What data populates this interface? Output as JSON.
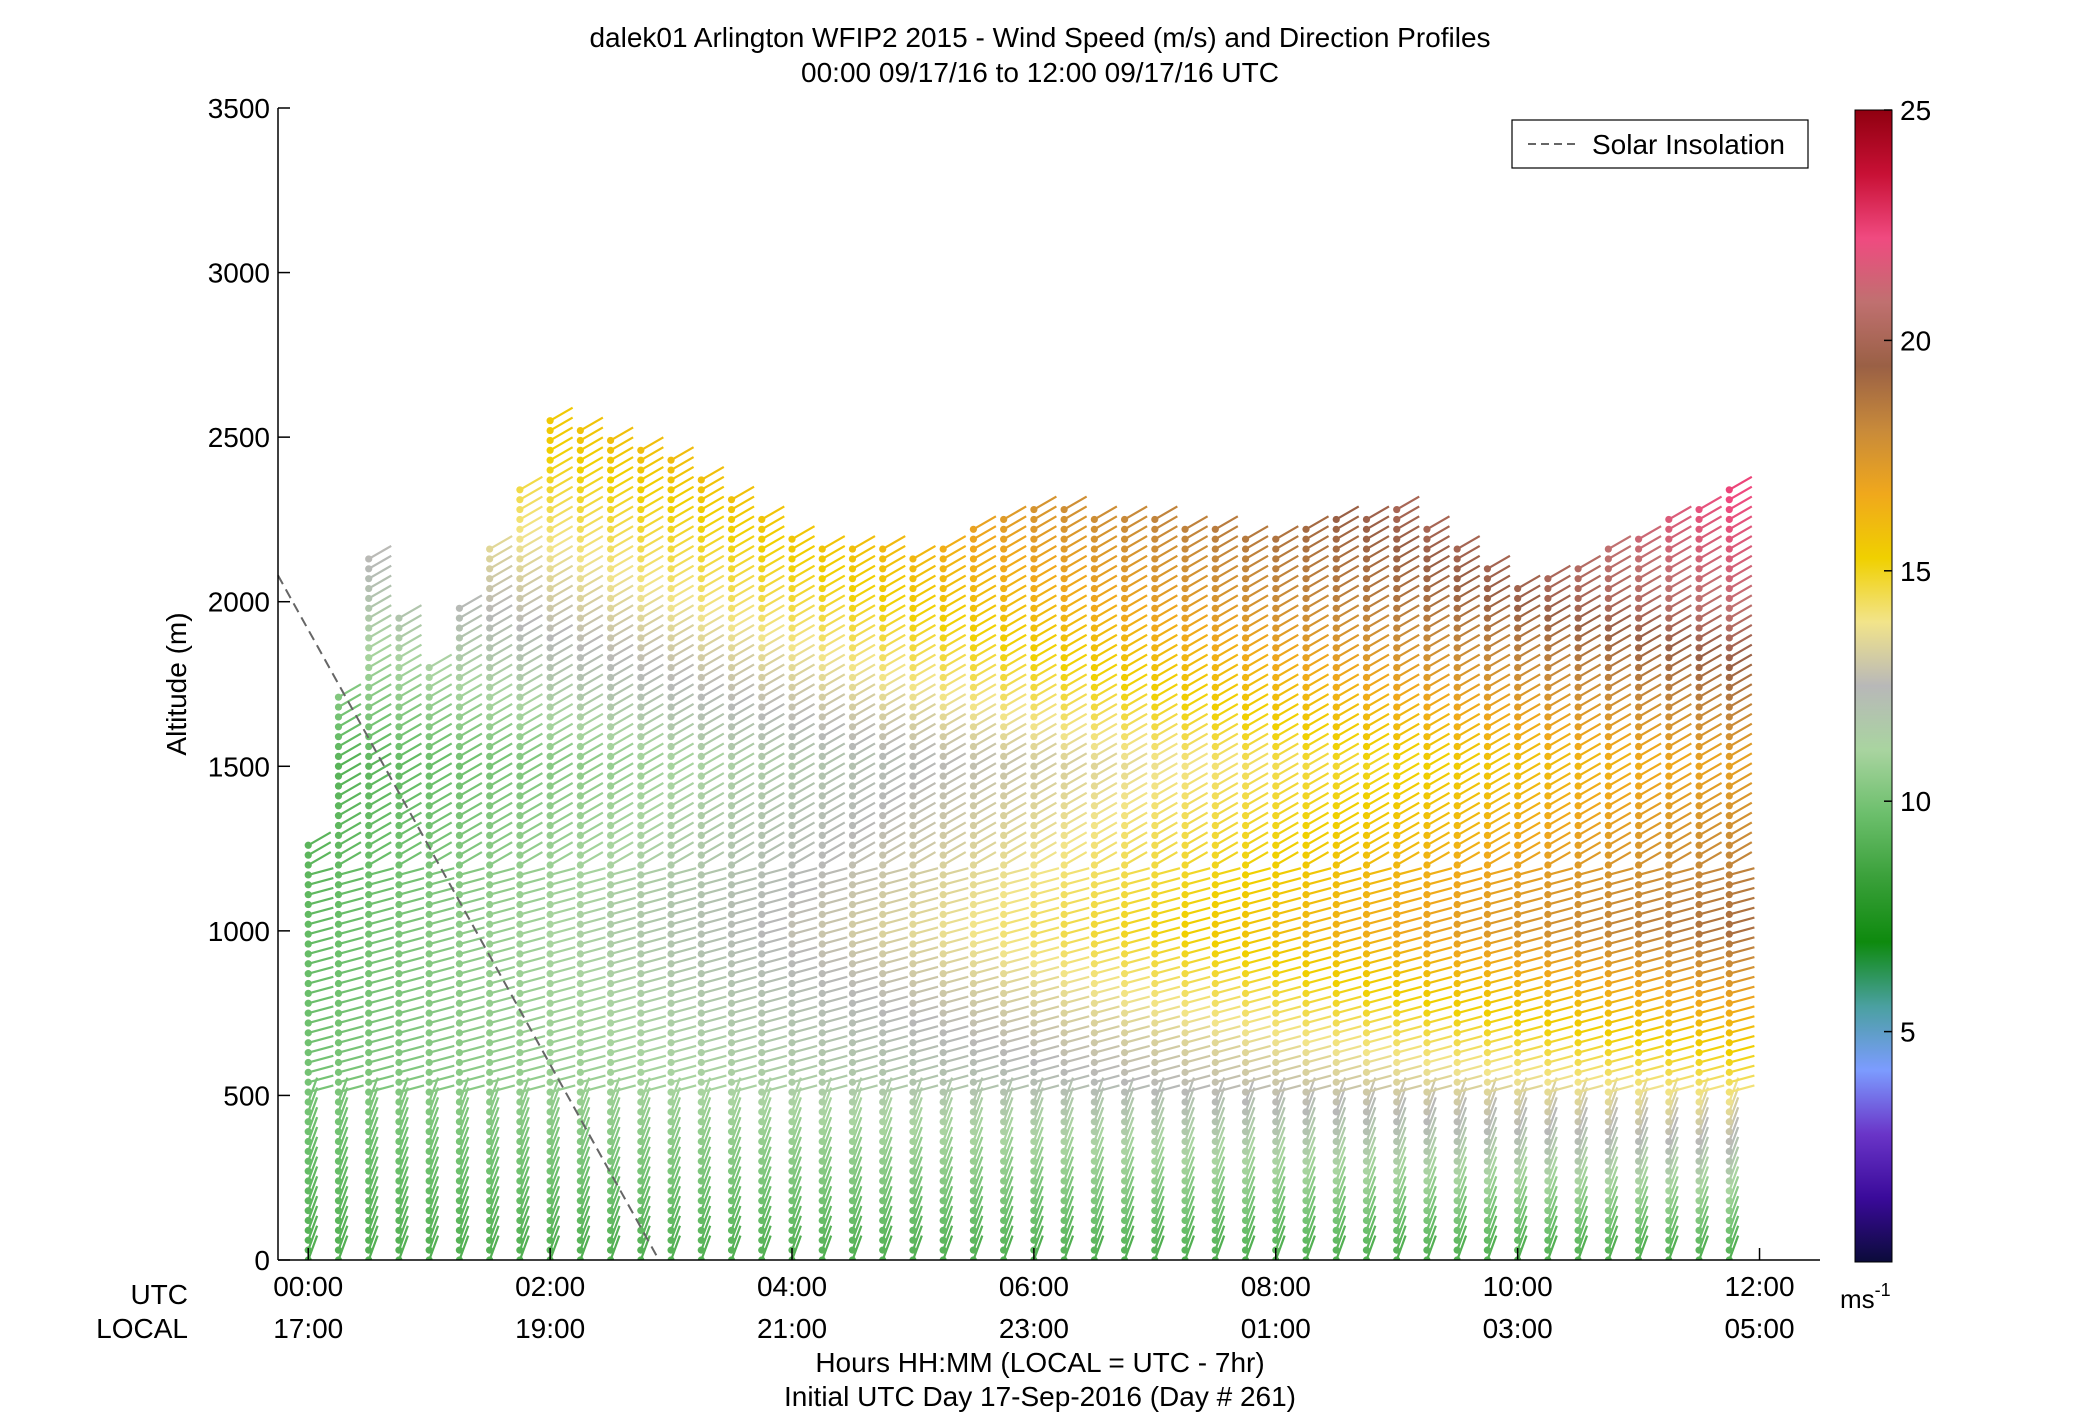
{
  "chart_data": {
    "type": "wind-barb-profile",
    "title": "dalek01 Arlington WFIP2 2015 - Wind Speed (m/s) and Direction Profiles",
    "subtitle": "00:00 09/17/16 to 12:00 09/17/16  UTC",
    "ylabel": "Altitude (m)",
    "xlabel": "Hours HH:MM  (LOCAL = UTC - 7hr)",
    "xlabel2": "Initial UTC Day 17-Sep-2016 (Day # 261)",
    "row_labels": {
      "utc": "UTC",
      "local": "LOCAL"
    },
    "ylim": [
      0,
      3500
    ],
    "yticks": [
      0,
      500,
      1000,
      1500,
      2000,
      2500,
      3000,
      3500
    ],
    "xlim_hours": [
      -0.25,
      12.5
    ],
    "xticks_hours": [
      0,
      2,
      4,
      6,
      8,
      10,
      12
    ],
    "xtick_labels_utc": [
      "00:00",
      "02:00",
      "04:00",
      "06:00",
      "08:00",
      "10:00",
      "12:00"
    ],
    "xtick_labels_local": [
      "17:00",
      "19:00",
      "21:00",
      "23:00",
      "01:00",
      "03:00",
      "05:00"
    ],
    "legend": {
      "entry": "Solar Insolation",
      "placement": "top-right",
      "style": "dashed gray line"
    },
    "solar_insolation_line": [
      {
        "hour": -0.25,
        "altitude_m": 2080
      },
      {
        "hour": 2.9,
        "altitude_m": 0
      }
    ],
    "colorbar": {
      "min": 0,
      "max": 25,
      "ticks": [
        5,
        10,
        15,
        20,
        25
      ],
      "unit_label": "ms",
      "unit_exponent": "-1",
      "colors": [
        "#0b0b3a",
        "#3a0a9a",
        "#6a35c8",
        "#7c9cff",
        "#4aa0a0",
        "#0e8a0e",
        "#3aa03a",
        "#6cbf6c",
        "#a9d4a0",
        "#b8b8b8",
        "#f2e48a",
        "#f0d000",
        "#f0a81c",
        "#c88a3a",
        "#9a6045",
        "#c07070",
        "#f04a80",
        "#c81035",
        "#900010"
      ]
    },
    "profiles": {
      "time_start_hours": 0,
      "time_step_hours": 0.25,
      "count": 48,
      "altitude_step_m": 30,
      "wind_direction_deg_by_layer": [
        {
          "altitude_m": [
            0,
            500
          ],
          "direction_deg": 340
        },
        {
          "altitude_m": [
            500,
            1200
          ],
          "direction_deg": 285
        },
        {
          "altitude_m": [
            1200,
            2500
          ],
          "direction_deg": 300
        }
      ],
      "max_altitude_m_by_hour": [
        {
          "hour": 0,
          "max_altitude_m": 1280
        },
        {
          "hour": 0.5,
          "max_altitude_m": 2150
        },
        {
          "hour": 1,
          "max_altitude_m": 1800
        },
        {
          "hour": 2,
          "max_altitude_m": 2550
        },
        {
          "hour": 3,
          "max_altitude_m": 2450
        },
        {
          "hour": 4,
          "max_altitude_m": 2200
        },
        {
          "hour": 5,
          "max_altitude_m": 2150
        },
        {
          "hour": 6,
          "max_altitude_m": 2300
        },
        {
          "hour": 7,
          "max_altitude_m": 2250
        },
        {
          "hour": 8,
          "max_altitude_m": 2200
        },
        {
          "hour": 9,
          "max_altitude_m": 2300
        },
        {
          "hour": 10,
          "max_altitude_m": 2050
        },
        {
          "hour": 11,
          "max_altitude_m": 2200
        },
        {
          "hour": 12,
          "max_altitude_m": 2400
        }
      ],
      "speed_by_altitude_m_early": [
        {
          "altitude_m": 0,
          "speed_ms": 9
        },
        {
          "altitude_m": 500,
          "speed_ms": 10
        },
        {
          "altitude_m": 1500,
          "speed_ms": 9
        },
        {
          "altitude_m": 2500,
          "speed_ms": 14
        }
      ],
      "speed_by_altitude_m_late": [
        {
          "altitude_m": 0,
          "speed_ms": 9
        },
        {
          "altitude_m": 500,
          "speed_ms": 14
        },
        {
          "altitude_m": 1000,
          "speed_ms": 19
        },
        {
          "altitude_m": 1500,
          "speed_ms": 17
        },
        {
          "altitude_m": 2000,
          "speed_ms": 21
        },
        {
          "altitude_m": 2500,
          "speed_ms": 23
        }
      ]
    }
  }
}
